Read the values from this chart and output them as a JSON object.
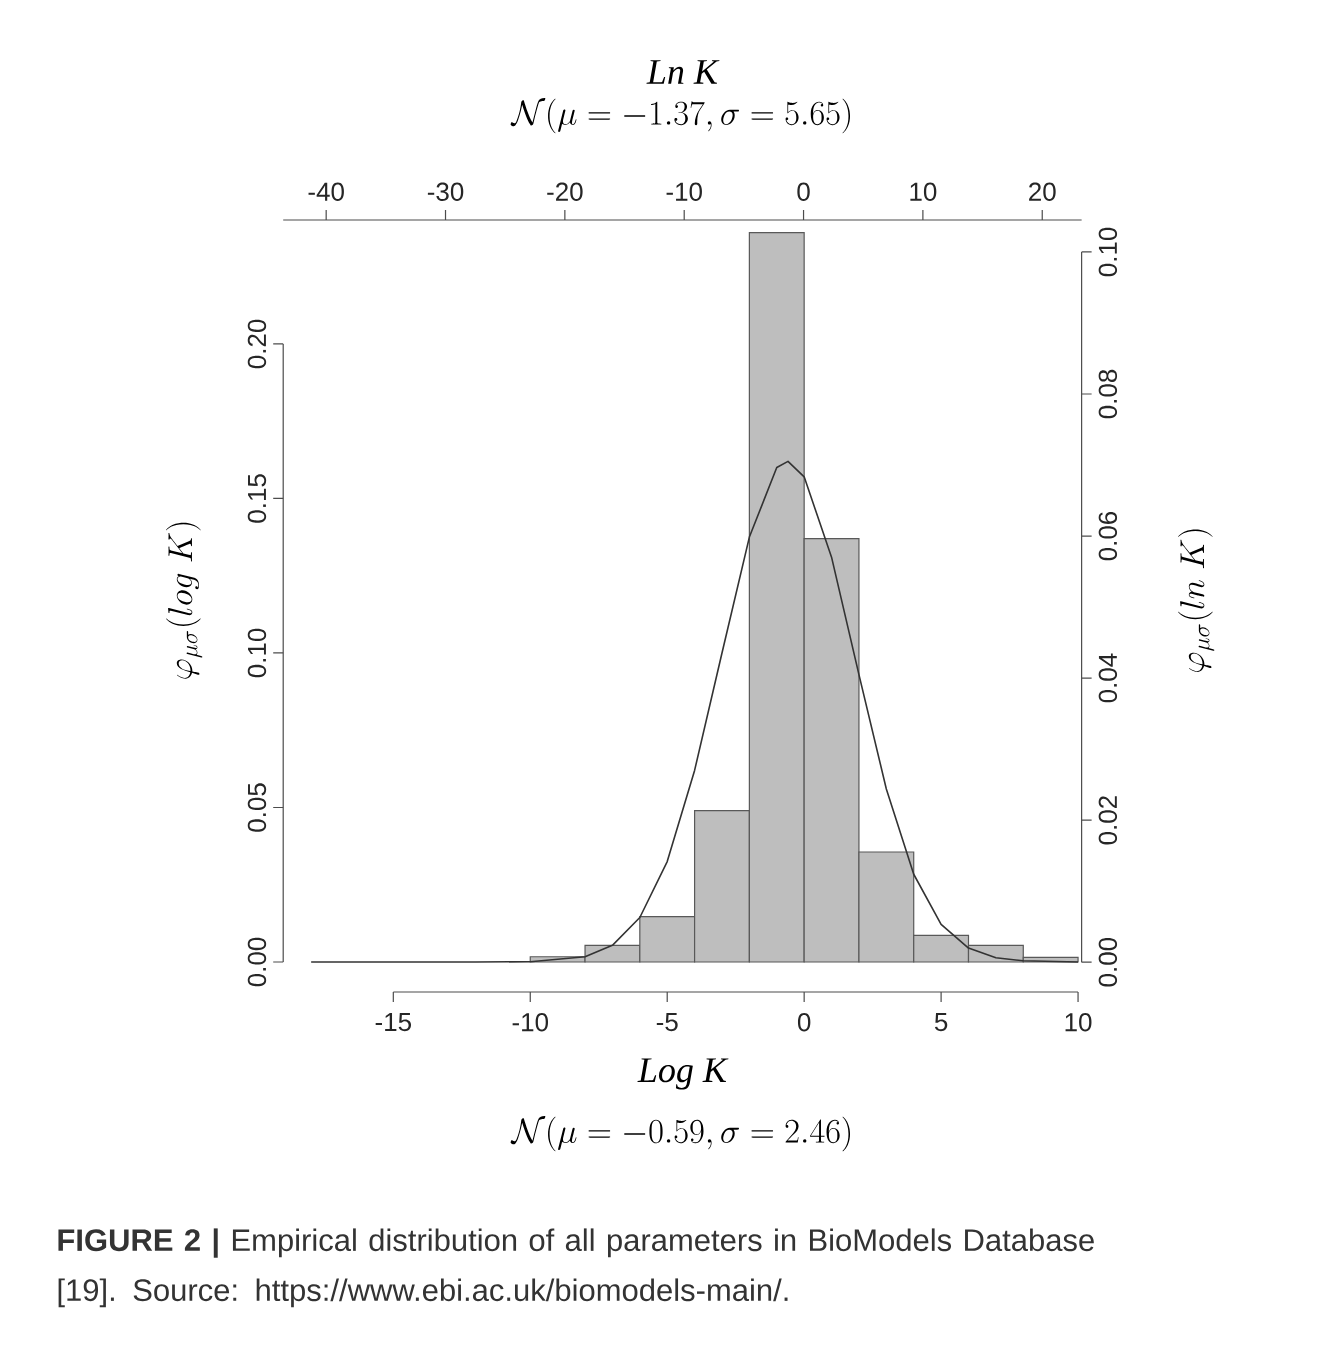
{
  "chart_data": {
    "type": "histogram",
    "xlabel": "Log K",
    "x2label": "Ln K",
    "ylabel": "\\varphi_{\\mu\\sigma}(log\\ K)",
    "y2label": "\\varphi_{\\mu\\sigma}(ln\\ K)",
    "annotations": [
      "\\mathcal{N}(\\mu = -0.59, \\sigma = 2.46)",
      "\\mathcal{N}(\\mu = -1.37, \\sigma = 5.65)",
      "**FIGURE 2 |** Empirical distribution of all parameters in BioModels Database [19]. Source: https://www.ebi.ac.uk/biomodels-main/."
    ],
    "xlim": [
      -19.02,
      10.13
    ],
    "xticks": [
      -15,
      -10,
      -5,
      0,
      5,
      10
    ],
    "ylim": [
      -0.0097,
      0.2401
    ],
    "yticks": [
      {
        "value": 0,
        "label": "0.00"
      },
      0.05,
      {
        "value": 0.1,
        "label": "0.10"
      },
      0.15,
      {
        "value": 0.2,
        "label": "0.20"
      }
    ],
    "x2lim": [
      -43.6,
      23.3
    ],
    "x2ticks": [
      -40,
      -30,
      -20,
      -10,
      0,
      10,
      20
    ],
    "y2lim": [
      -0.0042,
      0.1045
    ],
    "y2ticks": [
      {
        "value": 0,
        "label": "0.00"
      },
      0.02,
      0.04,
      0.06,
      0.08,
      {
        "value": 0.1,
        "label": "0.10"
      }
    ],
    "series": [
      {
        "type": "histogram",
        "color": "#bebebe",
        "bins": [
          -18,
          -16,
          -14,
          -12,
          -10,
          -8,
          -6,
          -4,
          -2,
          0,
          2,
          4,
          6,
          8,
          10
        ],
        "values": [
          null,
          null,
          null,
          null,
          0.0017,
          0.0054,
          0.0147,
          0.049,
          0.236,
          0.137,
          0.0356,
          0.0086,
          0.0054,
          0.0015
        ]
      },
      {
        "type": "line",
        "color": "#333333",
        "x": [
          -18,
          -12,
          -10,
          -8,
          -7,
          -6,
          -5,
          -4,
          -3,
          -2,
          -1,
          -0.59,
          0,
          1,
          2,
          3,
          4,
          5,
          6,
          7,
          8,
          10
        ],
        "values": [
          0,
          0,
          0.0001,
          0.0017,
          0.0054,
          0.0144,
          0.0325,
          0.062,
          0.1,
          0.1375,
          0.16,
          0.162,
          0.157,
          0.131,
          0.093,
          0.056,
          0.0284,
          0.0122,
          0.0045,
          0.0014,
          0.0004,
          0
        ]
      }
    ]
  }
}
